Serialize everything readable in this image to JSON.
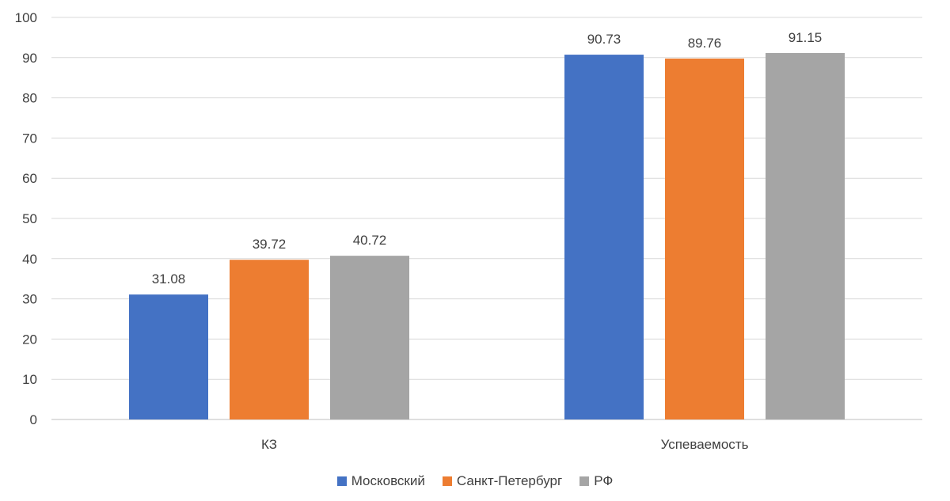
{
  "chart_data": {
    "type": "bar",
    "categories": [
      "КЗ",
      "Успеваемость"
    ],
    "series": [
      {
        "name": "Московский",
        "values": [
          31.08,
          90.73
        ],
        "color": "#4472C4"
      },
      {
        "name": "Санкт-Петербург",
        "values": [
          39.72,
          89.76
        ],
        "color": "#ED7D31"
      },
      {
        "name": "РФ",
        "values": [
          40.72,
          91.15
        ],
        "color": "#A5A5A5"
      }
    ],
    "ylim": [
      0,
      100
    ],
    "yticks": [
      0,
      10,
      20,
      30,
      40,
      50,
      60,
      70,
      80,
      90,
      100
    ],
    "title": "",
    "xlabel": "",
    "ylabel": "",
    "grid": true,
    "legend_position": "bottom",
    "data_labels": true
  }
}
